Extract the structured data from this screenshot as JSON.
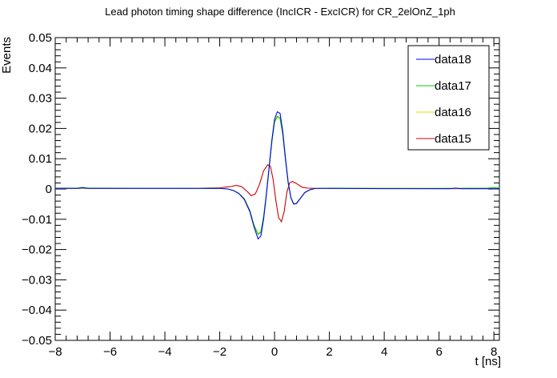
{
  "chart_data": {
    "type": "line",
    "title": "Lead photon timing shape difference (IncICR - ExcICR) for CR_2elOnZ_1ph",
    "xlabel": "t [ns]",
    "ylabel": "Events",
    "xlim": [
      -8,
      8.2
    ],
    "ylim": [
      -0.05,
      0.05
    ],
    "x_ticks": [
      -8,
      -6,
      -4,
      -2,
      0,
      2,
      4,
      6,
      8
    ],
    "x_tick_labels": [
      "−8",
      "−6",
      "−4",
      "−2",
      "0",
      "2",
      "4",
      "6",
      "8"
    ],
    "y_ticks": [
      -0.05,
      -0.04,
      -0.03,
      -0.02,
      -0.01,
      0,
      0.01,
      0.02,
      0.03,
      0.04,
      0.05
    ],
    "y_tick_labels": [
      "−0.05",
      "−0.04",
      "−0.03",
      "−0.02",
      "−0.01",
      "0",
      "0.01",
      "0.02",
      "0.03",
      "0.04",
      "0.05"
    ],
    "grid": false,
    "legend_position": "top-right",
    "series": [
      {
        "name": "data18",
        "color": "#0000ff",
        "points": [
          [
            -8,
            0.0002
          ],
          [
            -7.2,
            0.0002
          ],
          [
            -7,
            0.0004
          ],
          [
            -6.8,
            0.0002
          ],
          [
            -3,
            0.0002
          ],
          [
            -2,
            0.0002
          ],
          [
            -1.7,
            0.0
          ],
          [
            -1.5,
            -0.0005
          ],
          [
            -1.3,
            -0.0015
          ],
          [
            -1.1,
            -0.0035
          ],
          [
            -0.9,
            -0.0075
          ],
          [
            -0.75,
            -0.0125
          ],
          [
            -0.6,
            -0.0165
          ],
          [
            -0.5,
            -0.0155
          ],
          [
            -0.4,
            -0.01
          ],
          [
            -0.3,
            -0.002
          ],
          [
            -0.2,
            0.007
          ],
          [
            -0.1,
            0.016
          ],
          [
            0,
            0.023
          ],
          [
            0.1,
            0.0255
          ],
          [
            0.2,
            0.025
          ],
          [
            0.3,
            0.019
          ],
          [
            0.4,
            0.01
          ],
          [
            0.5,
            0.002
          ],
          [
            0.6,
            -0.003
          ],
          [
            0.7,
            -0.005
          ],
          [
            0.8,
            -0.0048
          ],
          [
            0.95,
            -0.003
          ],
          [
            1.1,
            -0.0012
          ],
          [
            1.3,
            -0.0002
          ],
          [
            1.5,
            0.0002
          ],
          [
            2,
            0.0002
          ],
          [
            4,
            0.0001
          ],
          [
            6.4,
            0.0001
          ],
          [
            6.6,
            0.0003
          ],
          [
            6.8,
            0.0001
          ],
          [
            8.2,
            0.0001
          ]
        ]
      },
      {
        "name": "data17",
        "color": "#00cc00",
        "points": [
          [
            -8,
            0.0003
          ],
          [
            -7.2,
            0.0003
          ],
          [
            -7,
            0.0005
          ],
          [
            -6.8,
            0.0003
          ],
          [
            -3,
            0.0002
          ],
          [
            -2,
            0.0002
          ],
          [
            -1.7,
            0.0
          ],
          [
            -1.5,
            -0.0005
          ],
          [
            -1.3,
            -0.0015
          ],
          [
            -1.1,
            -0.0033
          ],
          [
            -0.9,
            -0.0072
          ],
          [
            -0.75,
            -0.012
          ],
          [
            -0.6,
            -0.015
          ],
          [
            -0.5,
            -0.0143
          ],
          [
            -0.4,
            -0.0093
          ],
          [
            -0.3,
            -0.0018
          ],
          [
            -0.2,
            0.0068
          ],
          [
            -0.1,
            0.0155
          ],
          [
            0,
            0.0222
          ],
          [
            0.1,
            0.024
          ],
          [
            0.2,
            0.0235
          ],
          [
            0.3,
            0.018
          ],
          [
            0.4,
            0.0095
          ],
          [
            0.5,
            0.0018
          ],
          [
            0.6,
            -0.003
          ],
          [
            0.7,
            -0.005
          ],
          [
            0.8,
            -0.0047
          ],
          [
            0.95,
            -0.003
          ],
          [
            1.1,
            -0.0012
          ],
          [
            1.3,
            -0.0002
          ],
          [
            1.5,
            0.0002
          ],
          [
            2,
            0.0003
          ],
          [
            4,
            0.0002
          ],
          [
            6,
            0.0002
          ],
          [
            7.8,
            0.0003
          ],
          [
            8,
            0.0005
          ],
          [
            8.2,
            0.0004
          ]
        ]
      },
      {
        "name": "data16",
        "color": "#e0e000",
        "points": [
          [
            -8,
            0.0002
          ],
          [
            -6,
            0.0002
          ],
          [
            -3,
            0.0002
          ],
          [
            -2,
            0.0002
          ],
          [
            -1.7,
            0.0
          ],
          [
            -1.5,
            -0.0005
          ],
          [
            -1.3,
            -0.0014
          ],
          [
            -1.1,
            -0.0032
          ],
          [
            -0.9,
            -0.007
          ],
          [
            -0.75,
            -0.0118
          ],
          [
            -0.6,
            -0.0148
          ],
          [
            -0.5,
            -0.014
          ],
          [
            -0.4,
            -0.009
          ],
          [
            -0.3,
            -0.0016
          ],
          [
            -0.2,
            0.0068
          ],
          [
            -0.1,
            0.0152
          ],
          [
            0,
            0.022
          ],
          [
            0.1,
            0.0238
          ],
          [
            0.2,
            0.0232
          ],
          [
            0.3,
            0.0178
          ],
          [
            0.4,
            0.0093
          ],
          [
            0.5,
            0.0017
          ],
          [
            0.6,
            -0.003
          ],
          [
            0.7,
            -0.0049
          ],
          [
            0.8,
            -0.0046
          ],
          [
            0.95,
            -0.0029
          ],
          [
            1.1,
            -0.0011
          ],
          [
            1.3,
            -0.0002
          ],
          [
            1.5,
            0.0002
          ],
          [
            2,
            0.0002
          ],
          [
            5,
            0.0002
          ],
          [
            8.2,
            0.0002
          ]
        ]
      },
      {
        "name": "data15",
        "color": "#cc0000",
        "points": [
          [
            -8,
            0.0002
          ],
          [
            -3,
            0.0002
          ],
          [
            -2,
            0.0004
          ],
          [
            -1.6,
            0.0008
          ],
          [
            -1.4,
            0.0012
          ],
          [
            -1.2,
            0.0008
          ],
          [
            -1.0,
            -0.0008
          ],
          [
            -0.85,
            -0.0022
          ],
          [
            -0.7,
            -0.0016
          ],
          [
            -0.55,
            0.0015
          ],
          [
            -0.4,
            0.006
          ],
          [
            -0.25,
            0.008
          ],
          [
            -0.15,
            0.0075
          ],
          [
            -0.05,
            0.003
          ],
          [
            0.05,
            -0.004
          ],
          [
            0.15,
            -0.0095
          ],
          [
            0.25,
            -0.0108
          ],
          [
            0.35,
            -0.0075
          ],
          [
            0.45,
            -0.001
          ],
          [
            0.55,
            0.002
          ],
          [
            0.65,
            0.0025
          ],
          [
            0.8,
            0.0018
          ],
          [
            1.0,
            0.0006
          ],
          [
            1.2,
            0.0003
          ],
          [
            1.5,
            0.0002
          ],
          [
            3,
            0.0002
          ],
          [
            6,
            0.0001
          ],
          [
            8.2,
            0.0001
          ]
        ]
      }
    ]
  }
}
